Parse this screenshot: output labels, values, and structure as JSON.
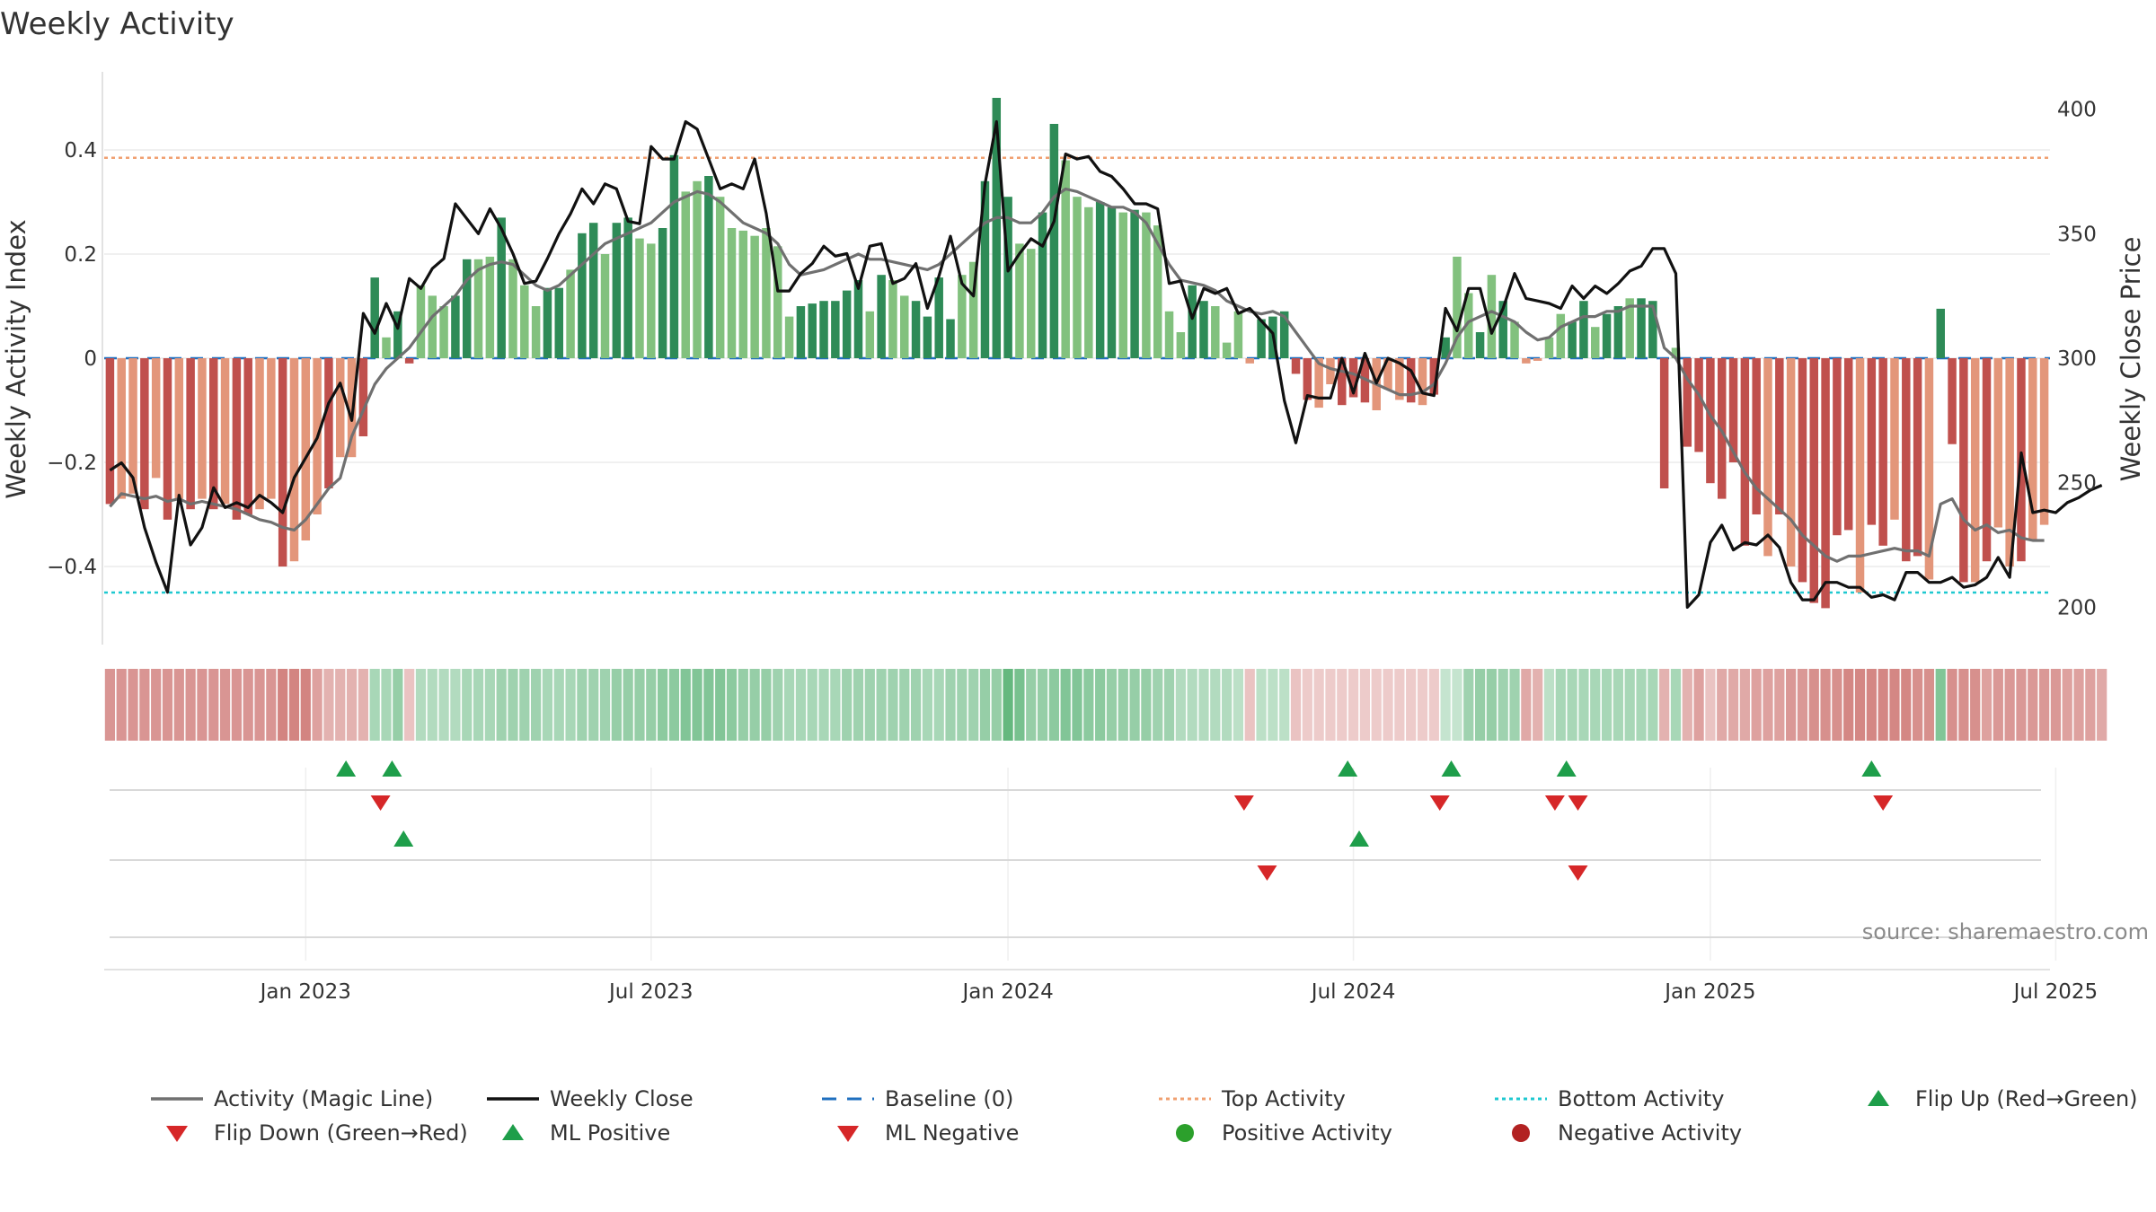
{
  "colors": {
    "bar_pos_dark": "#2e8b57",
    "bar_pos_light": "#82c17e",
    "bar_neg_dark": "#c0504d",
    "bar_neg_light": "#e3967a",
    "magic_line": "#707070",
    "close_line": "#111111",
    "baseline": "#1f6fbf",
    "top_line": "#f0a070",
    "bottom_line": "#1ec8d0",
    "flip_up": "#1e9e4a",
    "flip_down": "#d62728",
    "pos_activity": "#2ca02c",
    "neg_activity": "#b22222"
  },
  "chart_data": {
    "type": "bar",
    "title": "Weekly Activity",
    "ylabel": "Weekly Activity Index",
    "y2label": "Weekly Close Price",
    "ylim": [
      -0.55,
      0.55
    ],
    "y2lim": [
      185,
      415
    ],
    "yticks": [
      0.4,
      0.2,
      0,
      -0.2,
      -0.4
    ],
    "ytick_labels": [
      "0.4",
      "0.2",
      "0",
      "−0.2",
      "−0.4"
    ],
    "y2ticks": [
      400,
      350,
      300,
      250,
      200
    ],
    "y2tick_labels": [
      "400",
      "350",
      "300",
      "250",
      "200"
    ],
    "xticks": [
      {
        "label": "Jan 2023",
        "index": 17
      },
      {
        "label": "Jul 2023",
        "index": 47
      },
      {
        "label": "Jan 2024",
        "index": 78
      },
      {
        "label": "Jul 2024",
        "index": 108
      },
      {
        "label": "Jan 2025",
        "index": 139
      },
      {
        "label": "Jul 2025",
        "index": 169
      }
    ],
    "top_activity": 0.385,
    "bottom_activity": -0.45,
    "bar_values": [
      -0.28,
      -0.27,
      -0.26,
      -0.29,
      -0.23,
      -0.31,
      -0.27,
      -0.29,
      -0.27,
      -0.29,
      -0.28,
      -0.31,
      -0.3,
      -0.29,
      -0.27,
      -0.4,
      -0.39,
      -0.35,
      -0.3,
      -0.25,
      -0.19,
      -0.19,
      -0.15,
      0.155,
      0.04,
      0.09,
      -0.01,
      0.14,
      0.12,
      0.1,
      0.12,
      0.19,
      0.19,
      0.195,
      0.27,
      0.19,
      0.14,
      0.1,
      0.135,
      0.135,
      0.17,
      0.24,
      0.26,
      0.2,
      0.26,
      0.27,
      0.23,
      0.22,
      0.25,
      0.39,
      0.32,
      0.34,
      0.35,
      0.31,
      0.25,
      0.245,
      0.235,
      0.25,
      0.215,
      0.08,
      0.1,
      0.105,
      0.11,
      0.11,
      0.13,
      0.15,
      0.09,
      0.16,
      0.15,
      0.12,
      0.11,
      0.08,
      0.155,
      0.075,
      0.16,
      0.185,
      0.34,
      0.5,
      0.31,
      0.22,
      0.21,
      0.28,
      0.45,
      0.38,
      0.31,
      0.29,
      0.3,
      0.29,
      0.28,
      0.285,
      0.28,
      0.255,
      0.09,
      0.05,
      0.14,
      0.11,
      0.1,
      0.03,
      0.09,
      -0.01,
      0.075,
      0.08,
      0.09,
      -0.03,
      -0.08,
      -0.095,
      -0.05,
      -0.09,
      -0.075,
      -0.085,
      -0.1,
      -0.06,
      -0.08,
      -0.085,
      -0.09,
      -0.07,
      0.04,
      0.195,
      0.125,
      0.05,
      0.16,
      0.11,
      0.07,
      -0.01,
      -0.005,
      0.04,
      0.085,
      0.07,
      0.11,
      0.06,
      0.085,
      0.1,
      0.115,
      0.115,
      0.11,
      -0.25,
      0.02,
      -0.17,
      -0.18,
      -0.24,
      -0.27,
      -0.2,
      -0.36,
      -0.3,
      -0.38,
      -0.3,
      -0.4,
      -0.43,
      -0.47,
      -0.48,
      -0.34,
      -0.33,
      -0.45,
      -0.32,
      -0.36,
      -0.31,
      -0.39,
      -0.38,
      -0.425,
      0.095,
      -0.165,
      -0.43,
      -0.43,
      -0.39,
      -0.325,
      -0.4,
      -0.39,
      -0.35,
      -0.32
    ],
    "bar_shades": [
      1,
      0,
      0,
      1,
      0,
      1,
      0,
      1,
      0,
      1,
      0,
      1,
      1,
      0,
      0,
      1,
      0,
      0,
      0,
      1,
      0,
      0,
      1,
      1,
      0,
      1,
      1,
      0,
      0,
      0,
      1,
      1,
      0,
      0,
      1,
      0,
      0,
      0,
      1,
      1,
      0,
      1,
      1,
      0,
      1,
      1,
      0,
      0,
      1,
      1,
      0,
      0,
      1,
      0,
      0,
      0,
      0,
      0,
      0,
      0,
      1,
      1,
      1,
      1,
      1,
      1,
      0,
      1,
      0,
      0,
      1,
      1,
      1,
      1,
      0,
      0,
      1,
      1,
      1,
      0,
      0,
      1,
      1,
      0,
      0,
      0,
      1,
      1,
      0,
      1,
      0,
      0,
      0,
      0,
      1,
      1,
      0,
      0,
      0,
      0,
      1,
      1,
      1,
      1,
      1,
      0,
      0,
      1,
      1,
      1,
      0,
      0,
      0,
      1,
      0,
      1,
      1,
      0,
      0,
      1,
      0,
      1,
      0,
      0,
      0,
      0,
      0,
      1,
      1,
      0,
      1,
      1,
      0,
      1,
      1,
      1,
      0,
      1,
      1,
      1,
      1,
      1,
      1,
      1,
      0,
      1,
      0,
      1,
      1,
      1,
      1,
      1,
      0,
      1,
      1,
      0,
      1,
      1,
      0,
      1,
      1,
      1,
      0,
      1,
      0,
      0,
      1,
      0,
      0,
      0,
      0,
      1
    ],
    "magic_line": [
      -0.285,
      -0.26,
      -0.265,
      -0.27,
      -0.265,
      -0.275,
      -0.27,
      -0.28,
      -0.275,
      -0.28,
      -0.285,
      -0.29,
      -0.3,
      -0.31,
      -0.315,
      -0.325,
      -0.33,
      -0.31,
      -0.28,
      -0.25,
      -0.23,
      -0.15,
      -0.1,
      -0.05,
      -0.02,
      0.0,
      0.02,
      0.05,
      0.08,
      0.1,
      0.12,
      0.15,
      0.17,
      0.18,
      0.185,
      0.18,
      0.16,
      0.14,
      0.13,
      0.14,
      0.16,
      0.18,
      0.2,
      0.22,
      0.23,
      0.24,
      0.25,
      0.26,
      0.28,
      0.3,
      0.31,
      0.32,
      0.315,
      0.3,
      0.28,
      0.26,
      0.25,
      0.24,
      0.22,
      0.18,
      0.16,
      0.165,
      0.17,
      0.18,
      0.19,
      0.2,
      0.19,
      0.19,
      0.185,
      0.18,
      0.175,
      0.17,
      0.18,
      0.2,
      0.22,
      0.24,
      0.26,
      0.27,
      0.27,
      0.26,
      0.26,
      0.28,
      0.31,
      0.325,
      0.32,
      0.31,
      0.3,
      0.29,
      0.29,
      0.28,
      0.26,
      0.22,
      0.18,
      0.15,
      0.145,
      0.14,
      0.13,
      0.11,
      0.1,
      0.09,
      0.085,
      0.09,
      0.08,
      0.05,
      0.02,
      -0.01,
      -0.02,
      -0.025,
      -0.03,
      -0.04,
      -0.05,
      -0.06,
      -0.07,
      -0.07,
      -0.065,
      -0.05,
      -0.01,
      0.04,
      0.07,
      0.08,
      0.09,
      0.08,
      0.07,
      0.05,
      0.035,
      0.04,
      0.06,
      0.07,
      0.08,
      0.08,
      0.09,
      0.09,
      0.1,
      0.1,
      0.1,
      0.02,
      0.0,
      -0.04,
      -0.07,
      -0.11,
      -0.14,
      -0.18,
      -0.22,
      -0.25,
      -0.27,
      -0.29,
      -0.31,
      -0.34,
      -0.36,
      -0.38,
      -0.39,
      -0.38,
      -0.38,
      -0.375,
      -0.37,
      -0.365,
      -0.37,
      -0.37,
      -0.38,
      -0.28,
      -0.27,
      -0.31,
      -0.33,
      -0.32,
      -0.335,
      -0.33,
      -0.345,
      -0.35,
      -0.35
    ],
    "weekly_close": [
      255,
      258,
      252,
      232,
      218,
      206,
      245,
      225,
      232,
      248,
      240,
      242,
      240,
      245,
      242,
      238,
      252,
      260,
      268,
      282,
      290,
      275,
      318,
      310,
      322,
      312,
      332,
      328,
      336,
      340,
      362,
      356,
      350,
      360,
      352,
      342,
      330,
      331,
      340,
      350,
      358,
      368,
      362,
      370,
      368,
      355,
      354,
      385,
      380,
      380,
      395,
      392,
      380,
      368,
      370,
      368,
      380,
      358,
      327,
      327,
      334,
      338,
      345,
      341,
      342,
      328,
      345,
      346,
      330,
      332,
      338,
      320,
      333,
      349,
      330,
      325,
      370,
      395,
      335,
      342,
      348,
      345,
      355,
      382,
      380,
      381,
      375,
      373,
      368,
      362,
      362,
      360,
      330,
      331,
      316,
      328,
      326,
      328,
      318,
      320,
      315,
      310,
      283,
      266,
      285,
      284,
      284,
      300,
      286,
      302,
      290,
      300,
      298,
      295,
      286,
      285,
      320,
      311,
      328,
      328,
      310,
      320,
      334,
      324,
      323,
      322,
      320,
      329,
      324,
      329,
      326,
      330,
      335,
      337,
      344,
      344,
      334,
      200,
      205,
      226,
      233,
      223,
      226,
      225,
      229,
      224,
      210,
      203,
      203,
      210,
      210,
      208,
      208,
      204,
      205,
      203,
      214,
      214,
      210,
      210,
      212,
      208,
      209,
      212,
      220,
      212,
      262,
      238,
      239,
      238,
      242,
      244,
      247,
      249
    ],
    "strip_shades": [
      0.62,
      0.62,
      0.62,
      0.62,
      0.62,
      0.62,
      0.62,
      0.62,
      0.62,
      0.62,
      0.62,
      0.62,
      0.62,
      0.62,
      0.62,
      0.72,
      0.72,
      0.72,
      0.55,
      0.45,
      0.45,
      0.45,
      0.45,
      0.45,
      0.45,
      0.55,
      0.35,
      0.4,
      0.4,
      0.4,
      0.4,
      0.45,
      0.45,
      0.45,
      0.5,
      0.5,
      0.5,
      0.5,
      0.45,
      0.45,
      0.45,
      0.5,
      0.5,
      0.5,
      0.55,
      0.55,
      0.55,
      0.55,
      0.6,
      0.6,
      0.65,
      0.65,
      0.65,
      0.65,
      0.6,
      0.55,
      0.55,
      0.55,
      0.5,
      0.45,
      0.45,
      0.45,
      0.45,
      0.45,
      0.5,
      0.5,
      0.5,
      0.5,
      0.5,
      0.5,
      0.5,
      0.45,
      0.45,
      0.5,
      0.5,
      0.5,
      0.55,
      0.55,
      0.8,
      0.7,
      0.55,
      0.55,
      0.6,
      0.65,
      0.65,
      0.6,
      0.6,
      0.55,
      0.55,
      0.55,
      0.55,
      0.5,
      0.5,
      0.4,
      0.4,
      0.4,
      0.4,
      0.4,
      0.35,
      0.35,
      0.35,
      0.35,
      0.35,
      0.35,
      0.3,
      0.3,
      0.3,
      0.3,
      0.3,
      0.3,
      0.3,
      0.3,
      0.3,
      0.3,
      0.3,
      0.3,
      0.3,
      0.3,
      0.5,
      0.55,
      0.55,
      0.5,
      0.5,
      0.5,
      0.45,
      0.35,
      0.45,
      0.45,
      0.45,
      0.45,
      0.45,
      0.45,
      0.45,
      0.45,
      0.45,
      0.45,
      0.45,
      0.45,
      0.55,
      0.35,
      0.5,
      0.5,
      0.5,
      0.55,
      0.55,
      0.55,
      0.6,
      0.6,
      0.65,
      0.65,
      0.65,
      0.7,
      0.7,
      0.7,
      0.7,
      0.7,
      0.7,
      0.65,
      0.65,
      0.65,
      0.65,
      0.65,
      0.65,
      0.55,
      0.6,
      0.6,
      0.6,
      0.6,
      0.6,
      0.6,
      0.55,
      0.55,
      0.55,
      0.5
    ],
    "signal_rows": [
      {
        "name": "flips",
        "up": [
          20.5,
          24.5,
          107.5,
          116.5,
          126.5,
          153
        ],
        "down": [
          23.5,
          98.5,
          115.5,
          125.5,
          127.5,
          154
        ]
      },
      {
        "name": "ml",
        "up": [
          25.5,
          108.5
        ],
        "down": [
          100.5,
          127.5
        ]
      },
      {
        "name": "activity",
        "up": [],
        "down": []
      }
    ],
    "legend": [
      {
        "label": "Activity (Magic Line)",
        "kind": "line",
        "style": "solid",
        "color": "#707070"
      },
      {
        "label": "Weekly Close",
        "kind": "line",
        "style": "solid",
        "color": "#111111"
      },
      {
        "label": "Baseline (0)",
        "kind": "line",
        "style": "dashed",
        "color": "#1f6fbf"
      },
      {
        "label": "Top Activity",
        "kind": "line",
        "style": "dotted",
        "color": "#f0a070"
      },
      {
        "label": "Bottom Activity",
        "kind": "line",
        "style": "dotted",
        "color": "#1ec8d0"
      },
      {
        "label": "Flip Up (Red→Green)",
        "kind": "tri_up",
        "color": "#1e9e4a"
      },
      {
        "label": "Flip Down (Green→Red)",
        "kind": "tri_down",
        "color": "#d62728"
      },
      {
        "label": "ML Positive",
        "kind": "tri_up",
        "color": "#1e9e4a"
      },
      {
        "label": "ML Negative",
        "kind": "tri_down",
        "color": "#d62728"
      },
      {
        "label": "Positive Activity",
        "kind": "dot",
        "color": "#2ca02c"
      },
      {
        "label": "Negative Activity",
        "kind": "dot",
        "color": "#b22222"
      }
    ],
    "source": "source: sharemaestro.com"
  }
}
